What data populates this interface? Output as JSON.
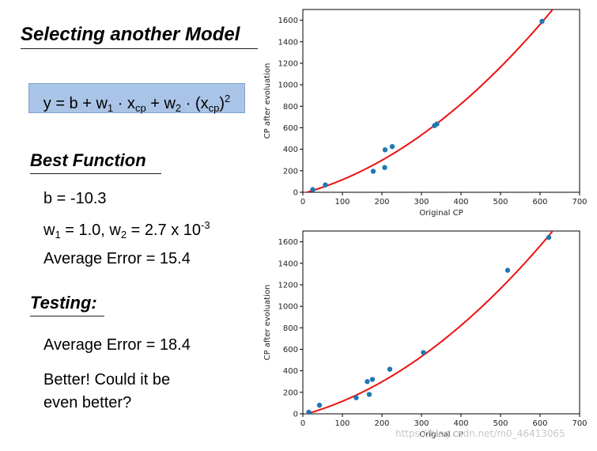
{
  "slide": {
    "title": "Selecting another Model",
    "formula": {
      "y": "y = b + w",
      "w1_sub": "1",
      "x_part": " · x",
      "cp_sub": "cp",
      "plus_w": " + w",
      "w2_sub": "2",
      "x2_part": " · (x",
      "cp_sub2": "cp",
      "close": ")",
      "sq": "2"
    },
    "best_function": {
      "heading": "Best Function",
      "b_line": "b = -10.3",
      "w_line": {
        "w1_pre": "w",
        "w1_sub": "1",
        "w1_val": " = 1.0, w",
        "w2_sub": "2",
        "w2_val": " = 2.7 x 10",
        "exp": "-3"
      },
      "avg_error": "Average Error = 15.4"
    },
    "testing": {
      "heading": "Testing:",
      "avg_error": "Average Error = 18.4",
      "comment_line1": "Better! Could it be",
      "comment_line2": "even better?"
    },
    "watermark": "https://blog.csdn.net/m0_46413065"
  },
  "chart_data": [
    {
      "type": "scatter",
      "xlabel": "Original CP",
      "ylabel": "CP after evoluation",
      "xlim": [
        0,
        700
      ],
      "ylim": [
        0,
        1700
      ],
      "xticks": [
        0,
        100,
        200,
        300,
        400,
        500,
        600,
        700
      ],
      "yticks": [
        0,
        200,
        400,
        600,
        800,
        1000,
        1200,
        1400,
        1600
      ],
      "points": [
        {
          "x": 25,
          "y": 25
        },
        {
          "x": 57,
          "y": 68
        },
        {
          "x": 178,
          "y": 195
        },
        {
          "x": 207,
          "y": 230
        },
        {
          "x": 208,
          "y": 395
        },
        {
          "x": 226,
          "y": 425
        },
        {
          "x": 333,
          "y": 620
        },
        {
          "x": 339,
          "y": 635
        },
        {
          "x": 605,
          "y": 1590
        }
      ],
      "fit_curve": {
        "b": -10.3,
        "w1": 1.0,
        "w2": 0.0027,
        "color": "#ee1111"
      },
      "point_color": "#1f77b4"
    },
    {
      "type": "scatter",
      "xlabel": "Original CP",
      "ylabel": "CP after evoluation",
      "xlim": [
        0,
        700
      ],
      "ylim": [
        0,
        1700
      ],
      "xticks": [
        0,
        100,
        200,
        300,
        400,
        500,
        600,
        700
      ],
      "yticks": [
        0,
        200,
        400,
        600,
        800,
        1000,
        1200,
        1400,
        1600
      ],
      "points": [
        {
          "x": 15,
          "y": 15
        },
        {
          "x": 42,
          "y": 80
        },
        {
          "x": 135,
          "y": 150
        },
        {
          "x": 163,
          "y": 300
        },
        {
          "x": 168,
          "y": 180
        },
        {
          "x": 176,
          "y": 320
        },
        {
          "x": 220,
          "y": 415
        },
        {
          "x": 305,
          "y": 570
        },
        {
          "x": 518,
          "y": 1335
        },
        {
          "x": 622,
          "y": 1640
        }
      ],
      "fit_curve": {
        "b": -10.3,
        "w1": 1.0,
        "w2": 0.0027,
        "color": "#ee1111"
      },
      "point_color": "#1f77b4"
    }
  ]
}
